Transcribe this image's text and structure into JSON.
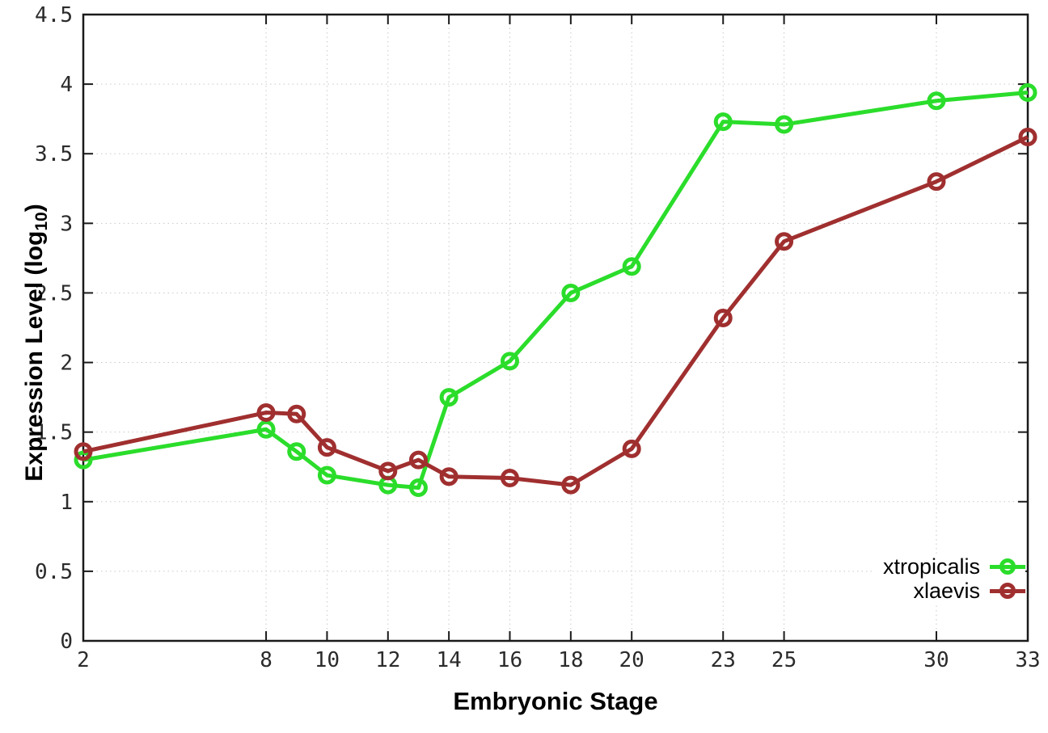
{
  "chart_data": {
    "type": "line",
    "title": "",
    "xlabel": "Embryonic Stage",
    "ylabel": "Expression Level (log10)",
    "ylabel_prefix": "Expression Level (log",
    "ylabel_sub": "10",
    "ylabel_suffix": ")",
    "x": [
      2,
      8,
      9,
      10,
      12,
      13,
      14,
      16,
      18,
      20,
      23,
      25,
      30,
      33
    ],
    "series": [
      {
        "name": "xtropicalis",
        "color": "#2bdd2b",
        "values": [
          1.3,
          1.52,
          1.36,
          1.19,
          1.12,
          1.1,
          1.75,
          2.01,
          2.5,
          2.69,
          3.73,
          3.71,
          3.88,
          3.94
        ]
      },
      {
        "name": "xlaevis",
        "color": "#a02f2f",
        "values": [
          1.36,
          1.64,
          1.63,
          1.39,
          1.22,
          1.3,
          1.18,
          1.17,
          1.12,
          1.38,
          2.32,
          2.87,
          3.3,
          3.62
        ]
      }
    ],
    "xlim": [
      2,
      33
    ],
    "ylim": [
      0,
      4.5
    ],
    "xticks": [
      2,
      8,
      10,
      12,
      14,
      16,
      18,
      20,
      23,
      25,
      30,
      33
    ],
    "yticks": [
      0,
      0.5,
      1,
      1.5,
      2,
      2.5,
      3,
      3.5,
      4,
      4.5
    ],
    "grid": true,
    "legend_position": "bottom-right",
    "colors": {
      "border": "#1a1a1a",
      "grid": "#c9c9c9",
      "tick_label": "#2b2b2b"
    }
  }
}
